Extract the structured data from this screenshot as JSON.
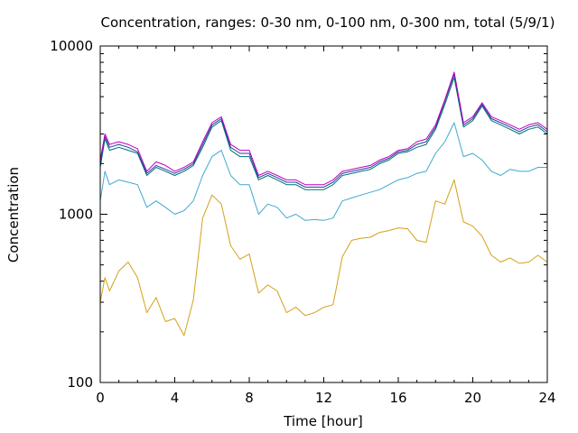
{
  "chart_data": {
    "type": "line",
    "title": "Concentration, ranges: 0-30 nm, 0-100 nm, 0-300 nm, total (5/9/1)",
    "xlabel": "Time [hour]",
    "ylabel": "Concentration",
    "xlim": [
      0,
      24
    ],
    "ylim": [
      100,
      10000
    ],
    "yscale": "log",
    "xticks": [
      0,
      4,
      8,
      12,
      16,
      20,
      24
    ],
    "yticks": [
      100,
      1000,
      10000
    ],
    "grid": false,
    "legend": "none",
    "x": [
      0,
      0.25,
      0.5,
      1,
      1.5,
      2,
      2.5,
      3,
      3.5,
      4,
      4.5,
      5,
      5.5,
      6,
      6.5,
      7,
      7.5,
      8,
      8.5,
      9,
      9.5,
      10,
      10.5,
      11,
      11.5,
      12,
      12.5,
      13,
      13.5,
      14,
      14.5,
      15,
      15.5,
      16,
      16.5,
      17,
      17.5,
      18,
      18.5,
      19,
      19.5,
      20,
      20.5,
      21,
      21.5,
      22,
      22.5,
      23,
      23.5,
      24
    ],
    "series": [
      {
        "values": [
          300,
          420,
          350,
          460,
          520,
          420,
          260,
          320,
          230,
          240,
          190,
          310,
          950,
          1300,
          1150,
          650,
          540,
          580,
          340,
          380,
          350,
          260,
          280,
          250,
          260,
          280,
          290,
          560,
          700,
          720,
          730,
          780,
          800,
          830,
          820,
          700,
          680,
          1200,
          1150,
          1600,
          900,
          850,
          740,
          570,
          520,
          550,
          510,
          520,
          570,
          520
        ],
        "color": "#d4a017"
      },
      {
        "values": [
          1200,
          1800,
          1500,
          1600,
          1550,
          1500,
          1100,
          1200,
          1100,
          1000,
          1050,
          1200,
          1700,
          2200,
          2400,
          1700,
          1500,
          1500,
          1000,
          1150,
          1100,
          950,
          1000,
          920,
          930,
          920,
          950,
          1200,
          1250,
          1300,
          1350,
          1400,
          1500,
          1600,
          1650,
          1750,
          1800,
          2300,
          2700,
          3500,
          2200,
          2300,
          2100,
          1800,
          1700,
          1850,
          1800,
          1800,
          1900,
          1900
        ],
        "color": "#3fa9d0"
      },
      {
        "values": [
          1900,
          2800,
          2400,
          2500,
          2400,
          2300,
          1700,
          1900,
          1800,
          1700,
          1800,
          1950,
          2500,
          3300,
          3600,
          2400,
          2200,
          2200,
          1600,
          1700,
          1600,
          1500,
          1500,
          1400,
          1400,
          1400,
          1500,
          1700,
          1750,
          1800,
          1850,
          2000,
          2100,
          2300,
          2350,
          2500,
          2600,
          3200,
          4500,
          6500,
          3300,
          3600,
          4400,
          3600,
          3400,
          3200,
          3000,
          3200,
          3300,
          3000
        ],
        "color": "#007070"
      },
      {
        "values": [
          2000,
          2900,
          2500,
          2600,
          2500,
          2350,
          1750,
          1950,
          1850,
          1750,
          1850,
          2000,
          2600,
          3400,
          3700,
          2500,
          2300,
          2300,
          1650,
          1750,
          1650,
          1550,
          1550,
          1450,
          1450,
          1450,
          1550,
          1750,
          1800,
          1850,
          1900,
          2050,
          2150,
          2350,
          2400,
          2600,
          2700,
          3300,
          4700,
          6800,
          3400,
          3700,
          4500,
          3700,
          3500,
          3300,
          3100,
          3300,
          3400,
          3100
        ],
        "color": "#2040a0"
      },
      {
        "values": [
          2100,
          3000,
          2600,
          2700,
          2600,
          2450,
          1800,
          2050,
          1950,
          1800,
          1900,
          2050,
          2700,
          3500,
          3800,
          2600,
          2400,
          2400,
          1700,
          1800,
          1700,
          1600,
          1600,
          1500,
          1500,
          1500,
          1600,
          1800,
          1850,
          1900,
          1950,
          2100,
          2200,
          2400,
          2450,
          2700,
          2800,
          3400,
          4800,
          7000,
          3500,
          3800,
          4600,
          3800,
          3600,
          3400,
          3200,
          3400,
          3500,
          3200
        ],
        "color": "#c000c0"
      }
    ]
  }
}
